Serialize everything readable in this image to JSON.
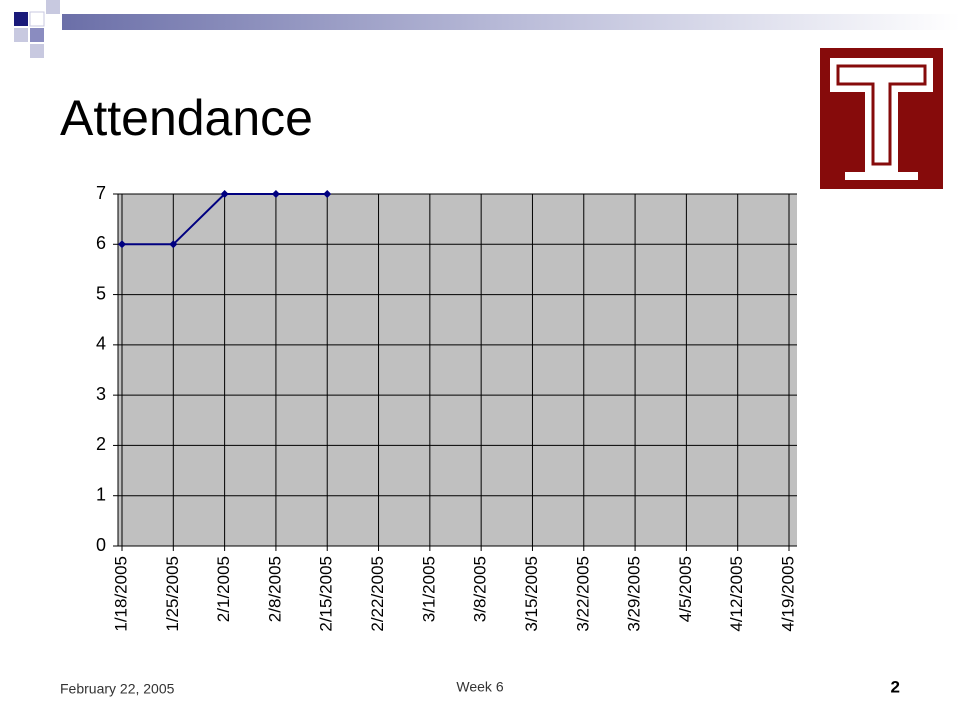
{
  "chart_data": {
    "type": "line",
    "title": "Attendance",
    "categories": [
      "1/18/2005",
      "1/25/2005",
      "2/1/2005",
      "2/8/2005",
      "2/15/2005",
      "2/22/2005",
      "3/1/2005",
      "3/8/2005",
      "3/15/2005",
      "3/22/2005",
      "3/29/2005",
      "4/5/2005",
      "4/12/2005",
      "4/19/2005"
    ],
    "series": [
      {
        "name": "Attendance",
        "color": "#000080",
        "values": [
          6,
          6,
          7,
          7,
          7,
          null,
          null,
          null,
          null,
          null,
          null,
          null,
          null,
          null
        ]
      }
    ],
    "ylim": [
      0,
      7
    ],
    "yticks": [
      0,
      1,
      2,
      3,
      4,
      5,
      6,
      7
    ],
    "grid": true
  },
  "footer": {
    "date": "February 22, 2005",
    "center": "Week 6",
    "page": "2"
  }
}
